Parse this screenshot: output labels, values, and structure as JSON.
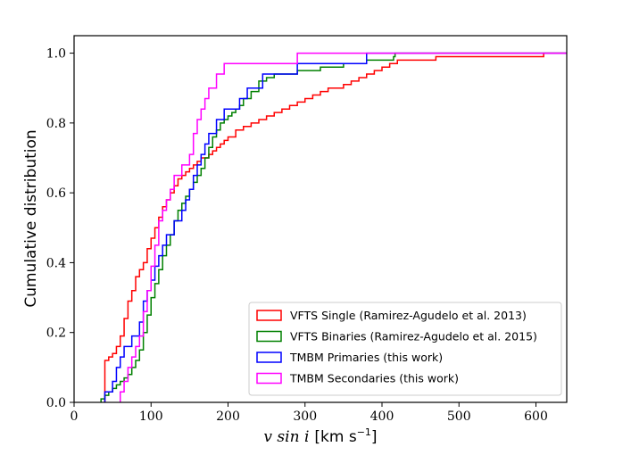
{
  "chart_data": {
    "type": "line",
    "step": true,
    "xlabel": "v sin i [km s⁻¹]",
    "xlabel_math": "v sin i",
    "xlabel_units": "[km s",
    "xlabel_exp": "−1",
    "xlabel_units_close": "]",
    "ylabel": "Cumulative distribution",
    "xlim": [
      0,
      640
    ],
    "ylim": [
      0,
      1.05
    ],
    "xticks": [
      0,
      100,
      200,
      300,
      400,
      500,
      600
    ],
    "yticks": [
      0.0,
      0.2,
      0.4,
      0.6,
      0.8,
      1.0
    ],
    "ytick_labels": [
      "0.0",
      "0.2",
      "0.4",
      "0.6",
      "0.8",
      "1.0"
    ],
    "legend_position": "lower-right",
    "series": [
      {
        "name": "VFTS Single (Ramirez-Agudelo et al. 2013)",
        "color": "#ff0000",
        "points": [
          [
            40,
            0
          ],
          [
            40,
            0.12
          ],
          [
            45,
            0.13
          ],
          [
            50,
            0.14
          ],
          [
            55,
            0.16
          ],
          [
            60,
            0.19
          ],
          [
            65,
            0.24
          ],
          [
            70,
            0.29
          ],
          [
            75,
            0.32
          ],
          [
            80,
            0.36
          ],
          [
            85,
            0.38
          ],
          [
            90,
            0.4
          ],
          [
            95,
            0.44
          ],
          [
            100,
            0.47
          ],
          [
            105,
            0.5
          ],
          [
            110,
            0.53
          ],
          [
            115,
            0.56
          ],
          [
            120,
            0.58
          ],
          [
            125,
            0.6
          ],
          [
            130,
            0.62
          ],
          [
            135,
            0.64
          ],
          [
            140,
            0.65
          ],
          [
            145,
            0.66
          ],
          [
            150,
            0.67
          ],
          [
            155,
            0.68
          ],
          [
            160,
            0.69
          ],
          [
            165,
            0.7
          ],
          [
            170,
            0.7
          ],
          [
            175,
            0.71
          ],
          [
            180,
            0.72
          ],
          [
            185,
            0.73
          ],
          [
            190,
            0.74
          ],
          [
            195,
            0.75
          ],
          [
            200,
            0.76
          ],
          [
            210,
            0.78
          ],
          [
            220,
            0.79
          ],
          [
            230,
            0.8
          ],
          [
            240,
            0.81
          ],
          [
            250,
            0.82
          ],
          [
            260,
            0.83
          ],
          [
            270,
            0.84
          ],
          [
            280,
            0.85
          ],
          [
            290,
            0.86
          ],
          [
            300,
            0.87
          ],
          [
            310,
            0.88
          ],
          [
            320,
            0.89
          ],
          [
            330,
            0.9
          ],
          [
            340,
            0.9
          ],
          [
            350,
            0.91
          ],
          [
            360,
            0.92
          ],
          [
            370,
            0.93
          ],
          [
            380,
            0.94
          ],
          [
            390,
            0.95
          ],
          [
            400,
            0.96
          ],
          [
            410,
            0.97
          ],
          [
            420,
            0.98
          ],
          [
            430,
            0.98
          ],
          [
            450,
            0.98
          ],
          [
            470,
            0.99
          ],
          [
            520,
            0.99
          ],
          [
            570,
            0.99
          ],
          [
            600,
            0.99
          ],
          [
            610,
            1.0
          ],
          [
            640,
            1.0
          ]
        ]
      },
      {
        "name": "VFTS Binaries (Ramirez-Agudelo et al. 2015)",
        "color": "#008000",
        "points": [
          [
            35,
            0
          ],
          [
            35,
            0.01
          ],
          [
            40,
            0.02
          ],
          [
            45,
            0.03
          ],
          [
            50,
            0.04
          ],
          [
            55,
            0.05
          ],
          [
            60,
            0.06
          ],
          [
            65,
            0.07
          ],
          [
            70,
            0.08
          ],
          [
            75,
            0.1
          ],
          [
            80,
            0.12
          ],
          [
            85,
            0.15
          ],
          [
            90,
            0.2
          ],
          [
            95,
            0.25
          ],
          [
            100,
            0.3
          ],
          [
            105,
            0.34
          ],
          [
            110,
            0.38
          ],
          [
            115,
            0.42
          ],
          [
            120,
            0.45
          ],
          [
            125,
            0.48
          ],
          [
            130,
            0.52
          ],
          [
            135,
            0.55
          ],
          [
            140,
            0.57
          ],
          [
            145,
            0.59
          ],
          [
            150,
            0.61
          ],
          [
            155,
            0.63
          ],
          [
            160,
            0.65
          ],
          [
            165,
            0.67
          ],
          [
            170,
            0.7
          ],
          [
            175,
            0.73
          ],
          [
            180,
            0.76
          ],
          [
            185,
            0.78
          ],
          [
            190,
            0.8
          ],
          [
            195,
            0.81
          ],
          [
            200,
            0.82
          ],
          [
            205,
            0.83
          ],
          [
            210,
            0.84
          ],
          [
            215,
            0.85
          ],
          [
            220,
            0.87
          ],
          [
            230,
            0.89
          ],
          [
            240,
            0.92
          ],
          [
            250,
            0.93
          ],
          [
            260,
            0.94
          ],
          [
            280,
            0.94
          ],
          [
            290,
            0.95
          ],
          [
            320,
            0.96
          ],
          [
            350,
            0.97
          ],
          [
            380,
            0.98
          ],
          [
            415,
            0.99
          ],
          [
            417,
            1.0
          ],
          [
            640,
            1.0
          ]
        ]
      },
      {
        "name": "TMBM Primaries (this work)",
        "color": "#0000ff",
        "points": [
          [
            40,
            0
          ],
          [
            40,
            0.03
          ],
          [
            50,
            0.06
          ],
          [
            55,
            0.1
          ],
          [
            60,
            0.13
          ],
          [
            65,
            0.16
          ],
          [
            75,
            0.19
          ],
          [
            85,
            0.23
          ],
          [
            90,
            0.29
          ],
          [
            95,
            0.32
          ],
          [
            100,
            0.35
          ],
          [
            105,
            0.39
          ],
          [
            110,
            0.42
          ],
          [
            115,
            0.45
          ],
          [
            120,
            0.48
          ],
          [
            130,
            0.52
          ],
          [
            140,
            0.55
          ],
          [
            145,
            0.58
          ],
          [
            150,
            0.61
          ],
          [
            155,
            0.65
          ],
          [
            160,
            0.68
          ],
          [
            165,
            0.71
          ],
          [
            170,
            0.74
          ],
          [
            175,
            0.77
          ],
          [
            185,
            0.81
          ],
          [
            195,
            0.84
          ],
          [
            215,
            0.87
          ],
          [
            225,
            0.9
          ],
          [
            235,
            0.9
          ],
          [
            245,
            0.94
          ],
          [
            290,
            0.97
          ],
          [
            380,
            1.0
          ],
          [
            640,
            1.0
          ]
        ]
      },
      {
        "name": "TMBM Secondaries (this work)",
        "color": "#ff00ff",
        "points": [
          [
            60,
            0
          ],
          [
            60,
            0.03
          ],
          [
            65,
            0.06
          ],
          [
            70,
            0.1
          ],
          [
            75,
            0.13
          ],
          [
            80,
            0.16
          ],
          [
            85,
            0.19
          ],
          [
            90,
            0.26
          ],
          [
            95,
            0.32
          ],
          [
            100,
            0.39
          ],
          [
            105,
            0.45
          ],
          [
            110,
            0.52
          ],
          [
            115,
            0.55
          ],
          [
            120,
            0.58
          ],
          [
            125,
            0.61
          ],
          [
            130,
            0.65
          ],
          [
            140,
            0.68
          ],
          [
            150,
            0.71
          ],
          [
            155,
            0.77
          ],
          [
            160,
            0.81
          ],
          [
            165,
            0.84
          ],
          [
            170,
            0.87
          ],
          [
            175,
            0.9
          ],
          [
            185,
            0.94
          ],
          [
            195,
            0.97
          ],
          [
            285,
            0.97
          ],
          [
            290,
            1.0
          ],
          [
            640,
            1.0
          ]
        ]
      }
    ]
  }
}
